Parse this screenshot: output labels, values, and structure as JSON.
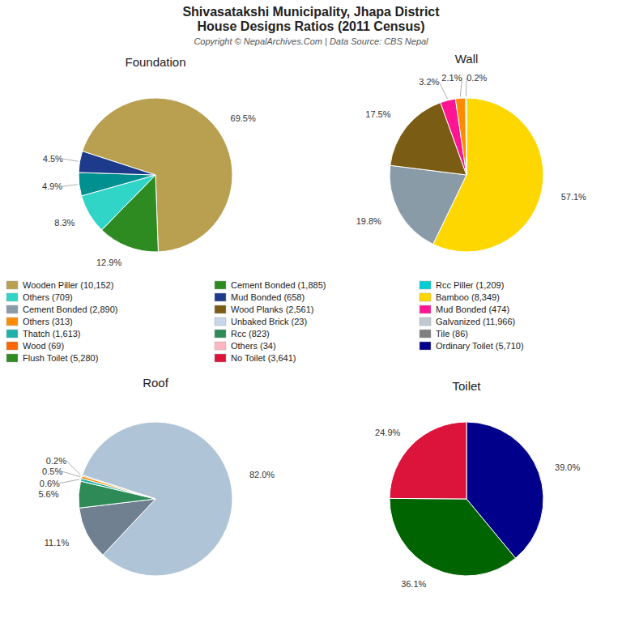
{
  "title": [
    "Shivasatakshi Municipality, Jhapa District",
    "House Designs Ratios (2011 Census)"
  ],
  "subtitle": "Copyright © NepalArchives.Com | Data Source: CBS Nepal",
  "chart_data": [
    {
      "type": "pie",
      "title": "Foundation",
      "values": [
        69.5,
        12.9,
        8.3,
        4.9,
        4.5
      ],
      "value_labels": [
        "69.5%",
        "12.9%",
        "8.3%",
        "4.9%",
        "4.5%"
      ],
      "colors": [
        "#B8A050",
        "#2E8B22",
        "#30D5C8",
        "#009090",
        "#1E3A8A"
      ],
      "data_labels": true
    },
    {
      "type": "pie",
      "title": "Wall",
      "values": [
        57.1,
        19.8,
        17.5,
        3.2,
        2.1,
        0.2
      ],
      "value_labels": [
        "57.1%",
        "19.8%",
        "17.5%",
        "3.2%",
        "2.1%",
        "0.2%"
      ],
      "colors": [
        "#FFD700",
        "#8A9BA8",
        "#7B5C14",
        "#FF1493",
        "#FF8C00",
        "#00CED1"
      ],
      "data_labels": true
    },
    {
      "type": "pie",
      "title": "Roof",
      "values": [
        82.0,
        11.1,
        5.6,
        0.6,
        0.5,
        0.2
      ],
      "value_labels": [
        "82.0%",
        "11.1%",
        "5.6%",
        "0.6%",
        "0.5%",
        "0.2%"
      ],
      "colors": [
        "#B0C4D8",
        "#708090",
        "#2E8B57",
        "#20B2AA",
        "#FF8C00",
        "#D2691E"
      ],
      "data_labels": true
    },
    {
      "type": "pie",
      "title": "Toilet",
      "values": [
        39.0,
        36.1,
        24.9
      ],
      "value_labels": [
        "39.0%",
        "36.1%",
        "24.9%"
      ],
      "colors": [
        "#00008B",
        "#006400",
        "#DC143C"
      ],
      "data_labels": true
    }
  ],
  "legend_entries": [
    {
      "label": "Wooden Piller (10,152)",
      "color": "#B8A050"
    },
    {
      "label": "Others (709)",
      "color": "#30D5C8"
    },
    {
      "label": "Cement Bonded (2,890)",
      "color": "#8A9BA8"
    },
    {
      "label": "Others (313)",
      "color": "#FF8C00"
    },
    {
      "label": "Thatch (1,613)",
      "color": "#20B2AA"
    },
    {
      "label": "Wood (69)",
      "color": "#FF6600"
    },
    {
      "label": "Flush Toilet (5,280)",
      "color": "#2E8B22"
    },
    {
      "label": "Cement Bonded (1,885)",
      "color": "#2E8B22"
    },
    {
      "label": "Mud Bonded (658)",
      "color": "#1E3A8A"
    },
    {
      "label": "Wood Planks (2,561)",
      "color": "#7B5C14"
    },
    {
      "label": "Unbaked Brick (23)",
      "color": "#C8D8E8"
    },
    {
      "label": "Rcc (823)",
      "color": "#2E8B57"
    },
    {
      "label": "Others (34)",
      "color": "#FFB6C1"
    },
    {
      "label": "No Toilet (3,641)",
      "color": "#DC143C"
    },
    {
      "label": "Rcc Piller (1,209)",
      "color": "#00CED1"
    },
    {
      "label": "Bamboo (8,349)",
      "color": "#FFD700"
    },
    {
      "label": "Mud Bonded (474)",
      "color": "#FF1493"
    },
    {
      "label": "Galvanized (11,966)",
      "color": "#C0C8D0"
    },
    {
      "label": "Tile (86)",
      "color": "#808080"
    },
    {
      "label": "Ordinary Toilet (5,710)",
      "color": "#00008B"
    }
  ]
}
